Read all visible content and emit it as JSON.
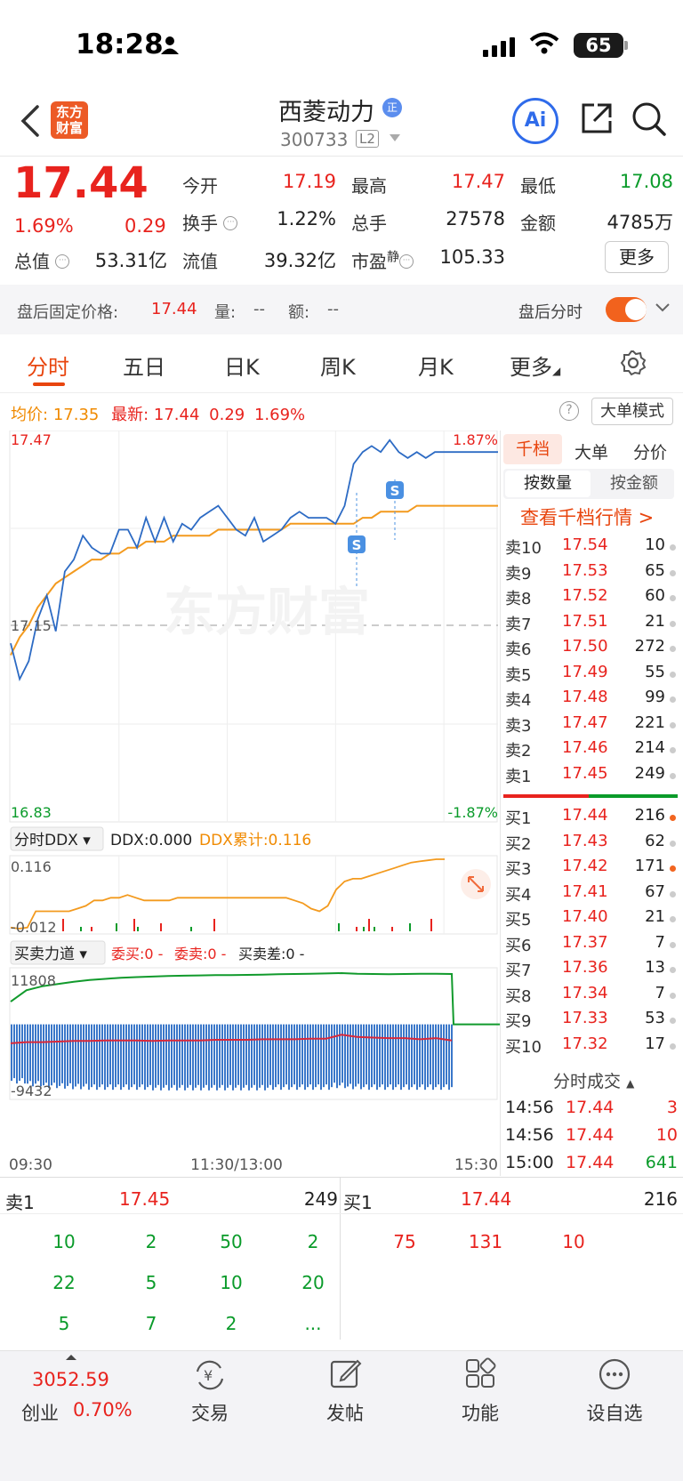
{
  "status": {
    "time": "18:28",
    "battery": "65"
  },
  "header": {
    "logo_line1": "东方",
    "logo_line2": "财富",
    "stock_name": "西菱动力",
    "badge": "正",
    "code": "300733",
    "level": "L2",
    "ai_label": "Ai"
  },
  "quote": {
    "price": "17.44",
    "change_pct": "1.69%",
    "change_amt": "0.29",
    "open_label": "今开",
    "open": "17.19",
    "high_label": "最高",
    "high": "17.47",
    "low_label": "最低",
    "low": "17.08",
    "turnover_label": "换手",
    "turnover": "1.22%",
    "volume_label": "总手",
    "volume": "27578",
    "amount_label": "金额",
    "amount": "4785万",
    "mcap_label": "总值",
    "mcap": "53.31亿",
    "float_label": "流值",
    "float": "39.32亿",
    "pe_label": "市盈",
    "pe_tag": "静",
    "pe": "105.33",
    "more": "更多"
  },
  "after_hours": {
    "price_label": "盘后固定价格:",
    "price": "17.44",
    "vol_label": "量:",
    "vol": "--",
    "amt_label": "额:",
    "amt": "--",
    "toggle_label": "盘后分时"
  },
  "tabs": [
    "分时",
    "五日",
    "日K",
    "周K",
    "月K",
    "更多"
  ],
  "chart_header": {
    "avg_label": "均价:",
    "avg": "17.35",
    "last_label": "最新:",
    "last": "17.44",
    "chg": "0.29",
    "pct": "1.69%",
    "help": "?",
    "big_order": "大单模式"
  },
  "chart_data": [
    {
      "type": "line",
      "name": "intraday",
      "ylim": [
        16.83,
        17.47
      ],
      "y_ticks": [
        "17.47",
        "17.15",
        "16.83"
      ],
      "right_ticks": [
        "1.87%",
        "-1.87%"
      ],
      "prev_close": 17.15,
      "x_labels": [
        "09:30",
        "11:30/13:00",
        "15:30"
      ],
      "watermark": "东方财富",
      "series": [
        {
          "values": [
            17.12,
            17.06,
            17.09,
            17.16,
            17.2,
            17.14,
            17.24,
            17.26,
            17.3,
            17.28,
            17.27,
            17.27,
            17.31,
            17.31,
            17.28,
            17.33,
            17.29,
            17.33,
            17.29,
            17.32,
            17.31,
            17.33,
            17.34,
            17.35,
            17.33,
            17.31,
            17.3,
            17.33,
            17.29,
            17.3,
            17.31,
            17.33,
            17.34,
            17.33,
            17.33,
            17.33,
            17.32,
            17.35,
            17.42,
            17.44,
            17.45,
            17.44,
            17.46,
            17.44,
            17.43,
            17.44,
            17.43,
            17.44,
            17.44,
            17.44,
            17.44,
            17.44,
            17.44,
            17.44,
            17.44
          ]
        },
        {
          "values": [
            17.1,
            17.13,
            17.15,
            17.18,
            17.2,
            17.22,
            17.23,
            17.24,
            17.25,
            17.26,
            17.26,
            17.27,
            17.27,
            17.28,
            17.28,
            17.29,
            17.29,
            17.29,
            17.3,
            17.3,
            17.3,
            17.3,
            17.3,
            17.31,
            17.31,
            17.31,
            17.31,
            17.31,
            17.31,
            17.31,
            17.31,
            17.32,
            17.32,
            17.32,
            17.32,
            17.32,
            17.32,
            17.32,
            17.32,
            17.33,
            17.33,
            17.34,
            17.34,
            17.34,
            17.34,
            17.35,
            17.35,
            17.35,
            17.35,
            17.35,
            17.35,
            17.35,
            17.35,
            17.35,
            17.35
          ]
        }
      ],
      "markers": [
        "S",
        "S"
      ]
    },
    {
      "type": "line",
      "name": "ddx",
      "legend": "分时DDX",
      "ddx_label": "DDX:",
      "ddx": "0.000",
      "ddx_cum_label": "DDX累计:",
      "ddx_cum": "0.116",
      "ylim": [
        -0.012,
        0.116
      ],
      "y_ticks": [
        "0.116",
        "-0.012"
      ],
      "series": [
        {
          "values": [
            -0.01,
            -0.012,
            -0.01,
            0.02,
            0.02,
            0.02,
            0.02,
            0.02,
            0.025,
            0.03,
            0.04,
            0.04,
            0.045,
            0.045,
            0.05,
            0.045,
            0.04,
            0.04,
            0.04,
            0.04,
            0.045,
            0.045,
            0.045,
            0.045,
            0.045,
            0.045,
            0.045,
            0.045,
            0.045,
            0.045,
            0.045,
            0.045,
            0.045,
            0.045,
            0.04,
            0.035,
            0.025,
            0.02,
            0.03,
            0.06,
            0.075,
            0.08,
            0.08,
            0.085,
            0.09,
            0.095,
            0.1,
            0.105,
            0.11,
            0.112,
            0.114,
            0.116,
            0.116
          ]
        }
      ]
    },
    {
      "type": "area",
      "name": "buy-sell-power",
      "legend": "买卖力道",
      "buy_label": "委买:",
      "buy": "0 -",
      "sell_label": "委卖:",
      "sell": "0 -",
      "diff_label": "买卖差:",
      "diff": "0 -",
      "ylim": [
        -9432,
        11808
      ],
      "y_ticks": [
        "11808",
        "-9432"
      ],
      "series": [
        {
          "name": "委买",
          "values": [
            6800,
            8800,
            9500,
            9900,
            10300,
            10600,
            10800,
            11000,
            11100,
            11200,
            11300,
            11350,
            11400,
            11450,
            11450,
            11500,
            11550,
            11600,
            11650,
            11700,
            11750,
            11808,
            11700,
            11650,
            11600,
            11650,
            11700,
            11700,
            11650
          ]
        },
        {
          "name": "委卖",
          "values": [
            2300,
            2500,
            2500,
            2600,
            2700,
            2700,
            2800,
            2800,
            2800,
            2700,
            2800,
            2800,
            2800,
            2900,
            2900,
            2900,
            3000,
            3000,
            3000,
            3100,
            3100,
            3800,
            3400,
            3300,
            3200,
            3200,
            3000,
            3200,
            2800
          ]
        },
        {
          "name": "买卖差",
          "values": [
            -8200,
            -8700,
            -9000,
            -9100,
            -9200,
            -9300,
            -9300,
            -9300,
            -9300,
            -9400,
            -9400,
            -9400,
            -9400,
            -9400,
            -9400,
            -9400,
            -9400,
            -9300,
            -9300,
            -9300,
            -9300,
            -9000,
            -9200,
            -9300,
            -9300,
            -9300,
            -9300,
            -9300,
            -9300
          ]
        }
      ]
    }
  ],
  "orderbook": {
    "tabs": [
      "千档",
      "大单",
      "分价"
    ],
    "sub_tabs": [
      "按数量",
      "按金额"
    ],
    "link": "查看千档行情 >",
    "asks": [
      {
        "label": "卖10",
        "price": "17.54",
        "qty": "10"
      },
      {
        "label": "卖9",
        "price": "17.53",
        "qty": "65"
      },
      {
        "label": "卖8",
        "price": "17.52",
        "qty": "60"
      },
      {
        "label": "卖7",
        "price": "17.51",
        "qty": "21"
      },
      {
        "label": "卖6",
        "price": "17.50",
        "qty": "272"
      },
      {
        "label": "卖5",
        "price": "17.49",
        "qty": "55"
      },
      {
        "label": "卖4",
        "price": "17.48",
        "qty": "99"
      },
      {
        "label": "卖3",
        "price": "17.47",
        "qty": "221"
      },
      {
        "label": "卖2",
        "price": "17.46",
        "qty": "214"
      },
      {
        "label": "卖1",
        "price": "17.45",
        "qty": "249"
      }
    ],
    "bids": [
      {
        "label": "买1",
        "price": "17.44",
        "qty": "216",
        "dot": true
      },
      {
        "label": "买2",
        "price": "17.43",
        "qty": "62"
      },
      {
        "label": "买3",
        "price": "17.42",
        "qty": "171",
        "dot": true
      },
      {
        "label": "买4",
        "price": "17.41",
        "qty": "67"
      },
      {
        "label": "买5",
        "price": "17.40",
        "qty": "21"
      },
      {
        "label": "买6",
        "price": "17.37",
        "qty": "7"
      },
      {
        "label": "买7",
        "price": "17.36",
        "qty": "13"
      },
      {
        "label": "买8",
        "price": "17.34",
        "qty": "7"
      },
      {
        "label": "买9",
        "price": "17.33",
        "qty": "53"
      },
      {
        "label": "买10",
        "price": "17.32",
        "qty": "17"
      }
    ],
    "trades_head": "分时成交",
    "trades": [
      {
        "time": "14:56",
        "price": "17.44",
        "qty": "3",
        "color": "#e8231e"
      },
      {
        "time": "14:56",
        "price": "17.44",
        "qty": "10",
        "color": "#e8231e"
      },
      {
        "time": "15:00",
        "price": "17.44",
        "qty": "641",
        "color": "#0a9b2a"
      }
    ]
  },
  "level1": {
    "ask_label": "卖1",
    "ask_price": "17.45",
    "ask_qty": "249",
    "bid_label": "买1",
    "bid_price": "17.44",
    "bid_qty": "216",
    "ask_queue": [
      "10",
      "2",
      "50",
      "2",
      "22",
      "5",
      "10",
      "20",
      "5",
      "7",
      "2",
      "..."
    ],
    "bid_queue": [
      "75",
      "131",
      "10"
    ]
  },
  "nav": {
    "index_value": "3052.59",
    "index_name": "创业",
    "index_pct": "0.70%",
    "items": [
      "交易",
      "发帖",
      "功能",
      "设自选"
    ]
  }
}
